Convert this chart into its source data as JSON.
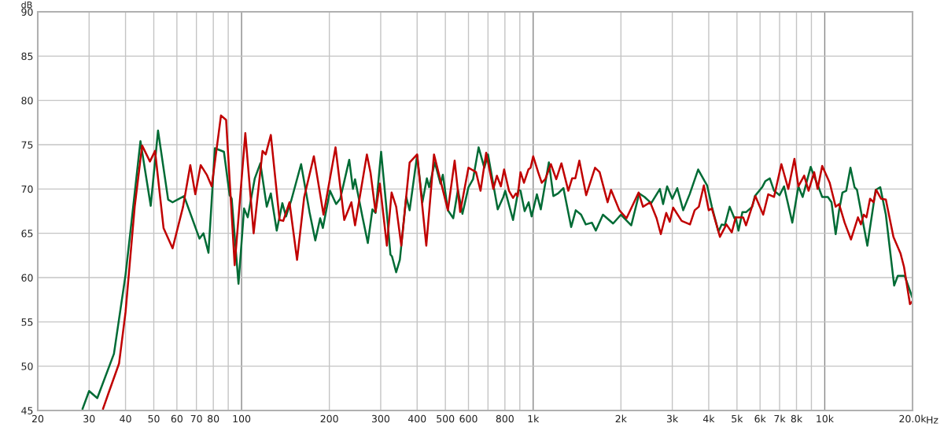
{
  "chart_data": {
    "type": "line",
    "log": "x",
    "ylabel": "dB",
    "grid": true,
    "legend": false,
    "marker": "none",
    "line_style": "solid",
    "xlim": [
      20,
      20000
    ],
    "ylim": [
      45,
      90
    ],
    "xticks": [
      20,
      30,
      40,
      50,
      60,
      70,
      80,
      {
        "value": 90,
        "label": null
      },
      100,
      200,
      300,
      400,
      500,
      600,
      {
        "value": 700,
        "label": null
      },
      800,
      {
        "value": 900,
        "label": null
      },
      {
        "value": 1000,
        "label": "1k"
      },
      {
        "value": 2000,
        "label": "2k"
      },
      {
        "value": 3000,
        "label": "3k"
      },
      {
        "value": 4000,
        "label": "4k"
      },
      {
        "value": 5000,
        "label": "5k"
      },
      {
        "value": 6000,
        "label": "6k"
      },
      {
        "value": 7000,
        "label": "7k"
      },
      {
        "value": 8000,
        "label": "8k"
      },
      {
        "value": 9000,
        "label": null
      },
      {
        "value": 10000,
        "label": "10k"
      },
      {
        "value": 20000,
        "label": "20.0k"
      }
    ],
    "xlabel": "Hz",
    "yticks": [
      45,
      50,
      55,
      60,
      65,
      70,
      75,
      80,
      85,
      90
    ],
    "series": [
      {
        "color": "#006b35",
        "x": [
          28.5,
          30,
          32,
          36.5,
          40,
          42,
          45,
          48.8,
          51.7,
          56,
          58,
          63.5,
          71.7,
          74,
          77,
          81,
          87,
          91,
          92.5,
          97.6,
          102,
          105,
          111,
          116,
          122,
          126,
          132,
          138,
          142,
          148,
          160,
          171,
          179,
          186,
          190,
          201,
          211,
          218,
          234,
          241,
          245,
          260,
          271,
          281,
          288,
          301,
          313,
          324,
          328,
          339,
          349,
          367,
          377,
          400,
          417,
          432,
          440,
          460,
          481,
          490,
          510,
          532,
          552,
          572,
          600,
          622,
          650,
          680,
          700,
          756,
          790,
          802,
          853,
          890,
          905,
          935,
          965,
          988,
          1030,
          1062,
          1132,
          1173,
          1218,
          1270,
          1350,
          1400,
          1460,
          1515,
          1590,
          1640,
          1735,
          1880,
          2000,
          2170,
          2310,
          2410,
          2540,
          2720,
          2790,
          2880,
          3000,
          3120,
          3270,
          3440,
          3680,
          3870,
          3950,
          4100,
          4320,
          4430,
          4540,
          4720,
          4900,
          4950,
          5060,
          5220,
          5380,
          5640,
          5760,
          6100,
          6260,
          6480,
          6700,
          7000,
          7250,
          7740,
          8120,
          8400,
          8950,
          9200,
          9500,
          9800,
          10250,
          10550,
          10900,
          11200,
          11500,
          11850,
          12250,
          12650,
          12900,
          14000,
          14950,
          15500,
          16200,
          17300,
          17800,
          18800,
          19950
        ],
        "values": [
          45.2,
          47.2,
          46.4,
          51.4,
          60.3,
          66.5,
          75.4,
          68.1,
          76.6,
          68.8,
          68.5,
          69.2,
          64.4,
          65,
          62.8,
          74.6,
          74.2,
          69.3,
          68.9,
          59.3,
          67.8,
          66.8,
          71.2,
          72.9,
          68,
          69.5,
          65.3,
          68.4,
          66.9,
          68.7,
          72.8,
          67.4,
          64.2,
          66.7,
          65.6,
          69.8,
          68.3,
          68.9,
          73.3,
          70,
          71.1,
          66.8,
          63.9,
          67.7,
          67.3,
          74.2,
          68.3,
          62.6,
          62.4,
          60.6,
          62,
          69.1,
          67.6,
          73.8,
          68.5,
          71.2,
          70.2,
          73,
          70.6,
          71.6,
          67.6,
          66.7,
          69.9,
          67.2,
          70.2,
          71.1,
          74.7,
          72.4,
          73.9,
          67.7,
          69.1,
          69.8,
          66.5,
          69.9,
          69.8,
          67.5,
          68.5,
          66.9,
          69.4,
          67.7,
          73,
          69.2,
          69.5,
          70.1,
          65.7,
          67.6,
          67.1,
          66,
          66.2,
          65.3,
          67.1,
          66.1,
          67.1,
          65.9,
          69.5,
          69.1,
          68.4,
          70,
          68.3,
          70.3,
          68.9,
          70.1,
          67.6,
          69.4,
          72.2,
          70.9,
          70.4,
          68,
          65.2,
          66,
          65.9,
          68,
          66.7,
          66.8,
          65.3,
          67.4,
          67.4,
          68,
          69.2,
          70.2,
          70.9,
          71.2,
          69.8,
          69.3,
          70.3,
          66.2,
          70.3,
          69.1,
          72.5,
          71.4,
          70.3,
          69.1,
          69.1,
          68.5,
          64.9,
          67.6,
          69.6,
          69.8,
          72.4,
          70.2,
          69.9,
          63.6,
          69.9,
          70.2,
          67.1,
          59.1,
          60.2,
          60.2,
          57.8
        ]
      },
      {
        "color": "#c00000",
        "x": [
          33.5,
          35,
          38,
          40,
          43,
          45.6,
          48.5,
          50.5,
          54,
          58,
          63,
          66.7,
          69.4,
          72.4,
          76,
          79,
          85,
          88.5,
          94.7,
          103,
          110,
          118,
          121,
          126,
          135,
          139,
          146,
          155,
          164,
          177,
          191,
          210,
          225,
          238,
          245,
          269,
          277,
          288,
          298,
          315,
          327,
          339,
          353,
          377,
          400,
          430,
          457,
          510,
          538,
          562,
          600,
          637,
          660,
          690,
          730,
          751,
          775,
          795,
          826,
          853,
          873,
          885,
          905,
          930,
          963,
          980,
          1000,
          1040,
          1070,
          1100,
          1150,
          1200,
          1250,
          1320,
          1360,
          1395,
          1440,
          1520,
          1630,
          1690,
          1800,
          1850,
          1975,
          2090,
          2300,
          2380,
          2520,
          2650,
          2740,
          2860,
          2940,
          3020,
          3230,
          3450,
          3580,
          3700,
          3850,
          4000,
          4100,
          4370,
          4600,
          4800,
          4950,
          5250,
          5370,
          5580,
          5780,
          6150,
          6400,
          6700,
          7100,
          7500,
          7870,
          8120,
          8500,
          8800,
          9200,
          9450,
          9800,
          10400,
          10900,
          11200,
          11700,
          12300,
          13000,
          13300,
          13600,
          13900,
          14300,
          14700,
          15000,
          15600,
          16200,
          17200,
          18200,
          18700,
          19600,
          19950
        ],
        "values": [
          45.2,
          47,
          50.3,
          56.1,
          68,
          74.9,
          73.1,
          74.3,
          65.6,
          63.3,
          68,
          72.7,
          69.4,
          72.7,
          71.6,
          70.3,
          78.3,
          77.8,
          61.4,
          76.3,
          65,
          74.3,
          73.9,
          76.1,
          66.5,
          66.4,
          68.5,
          62,
          69.1,
          73.7,
          67.1,
          74.7,
          66.5,
          68.5,
          65.9,
          73.9,
          71.8,
          67.4,
          70.6,
          63.6,
          69.6,
          68,
          63.6,
          73,
          73.9,
          63.6,
          73.9,
          67.6,
          73.2,
          67.4,
          72.4,
          71.9,
          69.8,
          74.1,
          70,
          71.5,
          70.3,
          72.2,
          69.8,
          69,
          69.5,
          69.2,
          71.9,
          70.7,
          72.2,
          72.4,
          73.7,
          71.9,
          70.7,
          71.1,
          72.8,
          71.1,
          72.9,
          69.8,
          71.2,
          71.2,
          73.2,
          69.3,
          72.4,
          71.9,
          68.5,
          69.9,
          67.6,
          66.7,
          69.6,
          68,
          68.5,
          66.7,
          64.9,
          67.3,
          66.3,
          67.9,
          66.4,
          66,
          67.6,
          68,
          70.4,
          67.6,
          67.8,
          64.6,
          66,
          65.1,
          66.8,
          66.8,
          65.9,
          67.6,
          69.2,
          67.1,
          69.4,
          69.1,
          72.8,
          70,
          73.4,
          70.3,
          71.5,
          69.8,
          71.9,
          70,
          72.6,
          70.7,
          68,
          68.3,
          66.2,
          64.3,
          66.8,
          66,
          67.1,
          66.8,
          68.9,
          68.5,
          69.9,
          68.9,
          68.8,
          64.6,
          62.7,
          61.2,
          57,
          57.3
        ]
      }
    ]
  }
}
